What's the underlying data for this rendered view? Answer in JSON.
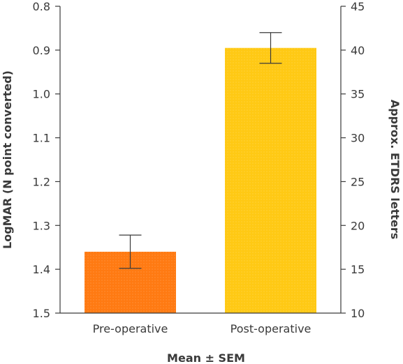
{
  "chart_data": {
    "type": "bar",
    "categories": [
      "Pre-operative",
      "Post-operative"
    ],
    "values": [
      1.36,
      0.895
    ],
    "errors": [
      0.038,
      0.035
    ],
    "colors": [
      "#ff7a12",
      "#ffc914"
    ],
    "xlabel": "Mean ± SEM",
    "ylabel": "LogMAR (N point converted)",
    "y2label": "Approx. ETDRS letters",
    "ylim": [
      0.8,
      1.5
    ],
    "y_inverted": true,
    "y_ticks": [
      "0.8",
      "0.9",
      "1.0",
      "1.1",
      "1.2",
      "1.3",
      "1.4",
      "1.5"
    ],
    "y2lim": [
      10,
      45
    ],
    "y2_ticks": [
      "45",
      "40",
      "35",
      "30",
      "25",
      "20",
      "15",
      "10"
    ],
    "grid": false
  }
}
